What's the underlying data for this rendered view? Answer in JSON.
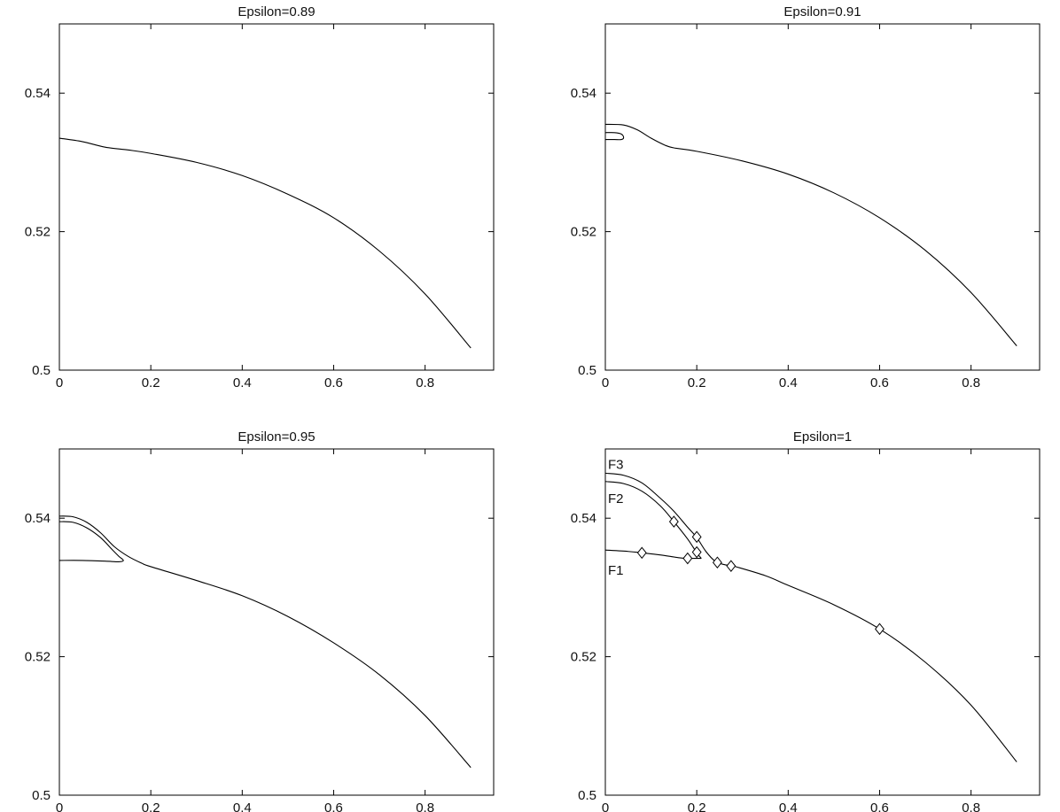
{
  "chart_data": [
    {
      "type": "line",
      "title": "Epsilon=0.89",
      "xlim": [
        0,
        0.95
      ],
      "ylim": [
        0.5,
        0.55
      ],
      "xticks": [
        0,
        0.2,
        0.4,
        0.6,
        0.8
      ],
      "xtick_labels": [
        "0",
        "0.2",
        "0.4",
        "0.6",
        "0.8"
      ],
      "yticks": [
        0.5,
        0.52,
        0.54
      ],
      "ytick_labels": [
        "0.5",
        "0.52",
        "0.54"
      ],
      "grid": false,
      "series": [
        {
          "values": [
            [
              0,
              0.5335
            ],
            [
              0.05,
              0.533
            ],
            [
              0.1,
              0.5322
            ],
            [
              0.15,
              0.5318
            ],
            [
              0.2,
              0.5313
            ],
            [
              0.3,
              0.53
            ],
            [
              0.4,
              0.5281
            ],
            [
              0.5,
              0.5254
            ],
            [
              0.6,
              0.522
            ],
            [
              0.7,
              0.5172
            ],
            [
              0.8,
              0.511
            ],
            [
              0.9,
              0.5032
            ]
          ]
        }
      ]
    },
    {
      "type": "line",
      "title": "Epsilon=0.91",
      "xlim": [
        0,
        0.95
      ],
      "ylim": [
        0.5,
        0.55
      ],
      "xticks": [
        0,
        0.2,
        0.4,
        0.6,
        0.8
      ],
      "xtick_labels": [
        "0",
        "0.2",
        "0.4",
        "0.6",
        "0.8"
      ],
      "yticks": [
        0.5,
        0.52,
        0.54
      ],
      "ytick_labels": [
        "0.5",
        "0.52",
        "0.54"
      ],
      "grid": false,
      "series": [
        {
          "values": [
            [
              0,
              0.5355
            ],
            [
              0.04,
              0.5354
            ],
            [
              0.07,
              0.5347
            ],
            [
              0.1,
              0.5335
            ],
            [
              0.13,
              0.5325
            ],
            [
              0.15,
              0.5321
            ],
            [
              0.2,
              0.5316
            ],
            [
              0.3,
              0.5302
            ],
            [
              0.4,
              0.5283
            ],
            [
              0.5,
              0.5256
            ],
            [
              0.6,
              0.522
            ],
            [
              0.7,
              0.5173
            ],
            [
              0.8,
              0.5112
            ],
            [
              0.9,
              0.5035
            ]
          ]
        },
        {
          "values": [
            [
              0,
              0.5343
            ],
            [
              0.02,
              0.5343
            ],
            [
              0.035,
              0.5341
            ],
            [
              0.04,
              0.5336
            ],
            [
              0.035,
              0.5333
            ],
            [
              0.02,
              0.5333
            ],
            [
              0,
              0.5333
            ]
          ]
        }
      ]
    },
    {
      "type": "line",
      "title": "Epsilon=0.95",
      "xlim": [
        0,
        0.95
      ],
      "ylim": [
        0.5,
        0.55
      ],
      "xticks": [
        0,
        0.2,
        0.4,
        0.6,
        0.8
      ],
      "xtick_labels": [
        "0",
        "0.2",
        "0.4",
        "0.6",
        "0.8"
      ],
      "yticks": [
        0.5,
        0.52,
        0.54
      ],
      "ytick_labels": [
        "0.5",
        "0.52",
        "0.54"
      ],
      "grid": false,
      "series": [
        {
          "values": [
            [
              0,
              0.5403
            ],
            [
              0.03,
              0.5402
            ],
            [
              0.06,
              0.5394
            ],
            [
              0.09,
              0.5379
            ],
            [
              0.12,
              0.5359
            ],
            [
              0.15,
              0.5345
            ],
            [
              0.18,
              0.5335
            ],
            [
              0.2,
              0.533
            ],
            [
              0.3,
              0.531
            ],
            [
              0.4,
              0.5288
            ],
            [
              0.5,
              0.5258
            ],
            [
              0.6,
              0.522
            ],
            [
              0.7,
              0.5174
            ],
            [
              0.8,
              0.5115
            ],
            [
              0.9,
              0.504
            ]
          ]
        },
        {
          "values": [
            [
              0,
              0.5395
            ],
            [
              0.03,
              0.5394
            ],
            [
              0.06,
              0.5386
            ],
            [
              0.09,
              0.5372
            ],
            [
              0.115,
              0.5355
            ],
            [
              0.13,
              0.5345
            ],
            [
              0.14,
              0.5339
            ],
            [
              0.13,
              0.5337
            ],
            [
              0.1,
              0.5338
            ],
            [
              0.05,
              0.5339
            ],
            [
              0,
              0.5339
            ]
          ]
        }
      ]
    },
    {
      "type": "line",
      "title": "Epsilon=1",
      "xlim": [
        0,
        0.95
      ],
      "ylim": [
        0.5,
        0.55
      ],
      "xticks": [
        0,
        0.2,
        0.4,
        0.6,
        0.8
      ],
      "xtick_labels": [
        "0",
        "0.2",
        "0.4",
        "0.6",
        "0.8"
      ],
      "yticks": [
        0.5,
        0.52,
        0.54
      ],
      "ytick_labels": [
        "0.5",
        "0.52",
        "0.54"
      ],
      "grid": false,
      "series": [
        {
          "name": "F3",
          "values": [
            [
              0,
              0.5465
            ],
            [
              0.04,
              0.5462
            ],
            [
              0.08,
              0.5451
            ],
            [
              0.12,
              0.5429
            ],
            [
              0.15,
              0.541
            ],
            [
              0.18,
              0.5387
            ],
            [
              0.2,
              0.5372
            ],
            [
              0.22,
              0.5352
            ],
            [
              0.24,
              0.5338
            ],
            [
              0.26,
              0.5333
            ],
            [
              0.28,
              0.5331
            ]
          ]
        },
        {
          "name": "F2",
          "values": [
            [
              0,
              0.5453
            ],
            [
              0.04,
              0.545
            ],
            [
              0.08,
              0.5439
            ],
            [
              0.12,
              0.5418
            ],
            [
              0.15,
              0.5395
            ],
            [
              0.18,
              0.537
            ],
            [
              0.2,
              0.535
            ],
            [
              0.21,
              0.5342
            ]
          ]
        },
        {
          "name": "F1",
          "values": [
            [
              0,
              0.5354
            ],
            [
              0.05,
              0.5352
            ],
            [
              0.08,
              0.535
            ],
            [
              0.12,
              0.5347
            ],
            [
              0.16,
              0.5343
            ],
            [
              0.18,
              0.5342
            ],
            [
              0.2,
              0.5342
            ],
            [
              0.21,
              0.5342
            ]
          ]
        },
        {
          "values": [
            [
              0.28,
              0.5331
            ],
            [
              0.35,
              0.5317
            ],
            [
              0.4,
              0.5303
            ],
            [
              0.5,
              0.5275
            ],
            [
              0.6,
              0.524
            ],
            [
              0.7,
              0.5192
            ],
            [
              0.8,
              0.513
            ],
            [
              0.9,
              0.5048
            ]
          ]
        }
      ],
      "markers": [
        [
          0.08,
          0.535
        ],
        [
          0.15,
          0.5395
        ],
        [
          0.18,
          0.5342
        ],
        [
          0.2,
          0.5351
        ],
        [
          0.2,
          0.5373
        ],
        [
          0.245,
          0.5336
        ],
        [
          0.275,
          0.5331
        ],
        [
          0.6,
          0.524
        ]
      ]
    }
  ]
}
